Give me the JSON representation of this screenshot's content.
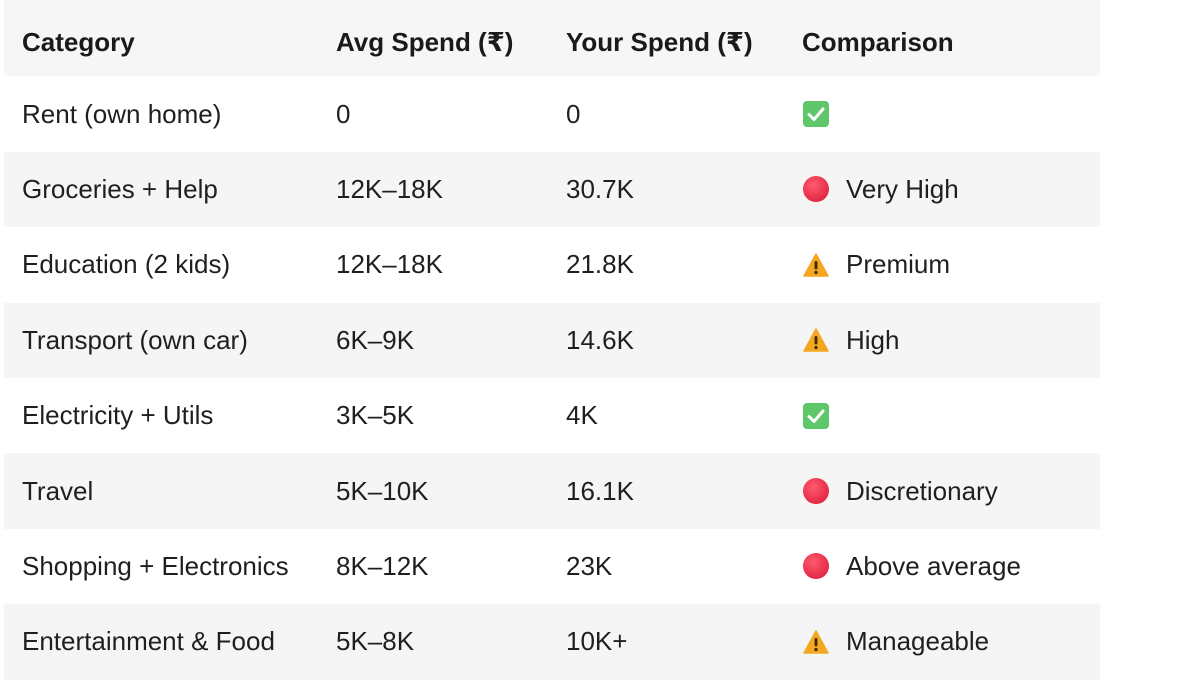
{
  "table": {
    "headers": [
      "Category",
      "Avg Spend (₹)",
      "Your Spend (₹)",
      "Comparison"
    ],
    "rows": [
      {
        "category": "Rent (own home)",
        "avg": "0",
        "yours": "0",
        "icon": "check-box-icon",
        "comparison": ""
      },
      {
        "category": "Groceries + Help",
        "avg": "12K–18K",
        "yours": "30.7K",
        "icon": "red-circle-icon",
        "comparison": "Very High"
      },
      {
        "category": "Education (2 kids)",
        "avg": "12K–18K",
        "yours": "21.8K",
        "icon": "warning-icon",
        "comparison": "Premium"
      },
      {
        "category": "Transport (own car)",
        "avg": "6K–9K",
        "yours": "14.6K",
        "icon": "warning-icon",
        "comparison": "High"
      },
      {
        "category": "Electricity + Utils",
        "avg": "3K–5K",
        "yours": "4K",
        "icon": "check-box-icon",
        "comparison": ""
      },
      {
        "category": "Travel",
        "avg": "5K–10K",
        "yours": "16.1K",
        "icon": "red-circle-icon",
        "comparison": "Discretionary"
      },
      {
        "category": "Shopping + Electronics",
        "avg": "8K–12K",
        "yours": "23K",
        "icon": "red-circle-icon",
        "comparison": "Above average"
      },
      {
        "category": "Entertainment & Food",
        "avg": "5K–8K",
        "yours": "10K+",
        "icon": "warning-icon",
        "comparison": "Manageable"
      }
    ]
  },
  "colors": {
    "check": "#5fc66a",
    "red": "#e0243f",
    "warning": "#f5a623"
  }
}
